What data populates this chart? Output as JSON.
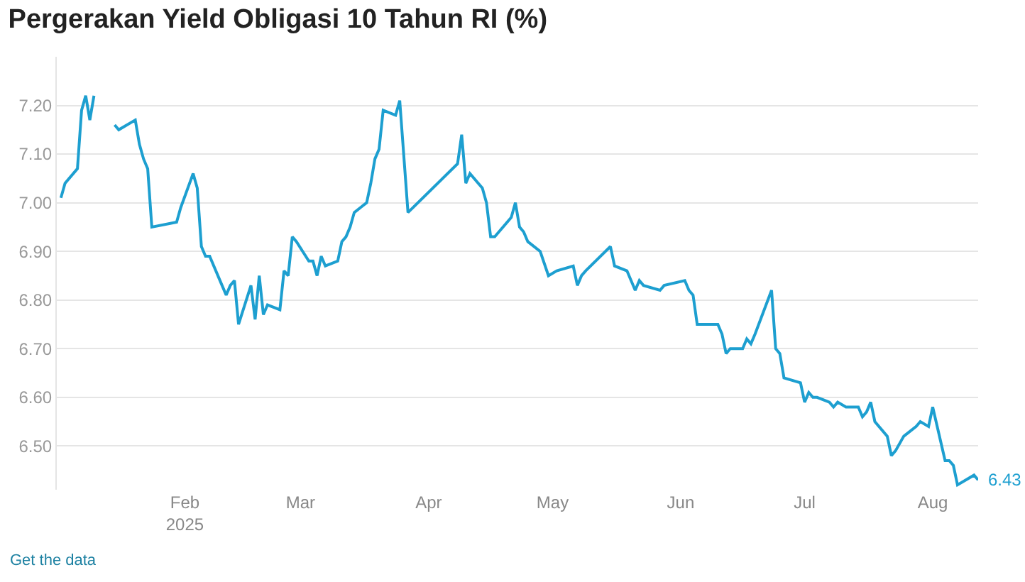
{
  "chart_data": {
    "type": "line",
    "title": "Pergerakan Yield Obligasi 10 Tahun RI (%)",
    "x": [
      "2025-01-02",
      "2025-01-03",
      "2025-01-06",
      "2025-01-07",
      "2025-01-08",
      "2025-01-09",
      "2025-01-10",
      "2025-01-13",
      "2025-01-14",
      "2025-01-15",
      "2025-01-16",
      "2025-01-20",
      "2025-01-21",
      "2025-01-22",
      "2025-01-23",
      "2025-01-24",
      "2025-01-30",
      "2025-01-31",
      "2025-02-03",
      "2025-02-04",
      "2025-02-05",
      "2025-02-06",
      "2025-02-07",
      "2025-02-10",
      "2025-02-11",
      "2025-02-12",
      "2025-02-13",
      "2025-02-14",
      "2025-02-17",
      "2025-02-18",
      "2025-02-19",
      "2025-02-20",
      "2025-02-21",
      "2025-02-24",
      "2025-02-25",
      "2025-02-26",
      "2025-02-27",
      "2025-02-28",
      "2025-03-03",
      "2025-03-04",
      "2025-03-05",
      "2025-03-06",
      "2025-03-07",
      "2025-03-10",
      "2025-03-11",
      "2025-03-12",
      "2025-03-13",
      "2025-03-14",
      "2025-03-17",
      "2025-03-18",
      "2025-03-19",
      "2025-03-20",
      "2025-03-21",
      "2025-03-24",
      "2025-03-25",
      "2025-03-27",
      "2025-04-08",
      "2025-04-09",
      "2025-04-10",
      "2025-04-11",
      "2025-04-14",
      "2025-04-15",
      "2025-04-16",
      "2025-04-17",
      "2025-04-21",
      "2025-04-22",
      "2025-04-23",
      "2025-04-24",
      "2025-04-25",
      "2025-04-28",
      "2025-04-30",
      "2025-05-02",
      "2025-05-06",
      "2025-05-07",
      "2025-05-08",
      "2025-05-09",
      "2025-05-15",
      "2025-05-16",
      "2025-05-19",
      "2025-05-20",
      "2025-05-21",
      "2025-05-22",
      "2025-05-23",
      "2025-05-27",
      "2025-05-28",
      "2025-06-02",
      "2025-06-03",
      "2025-06-04",
      "2025-06-05",
      "2025-06-10",
      "2025-06-11",
      "2025-06-12",
      "2025-06-13",
      "2025-06-16",
      "2025-06-17",
      "2025-06-18",
      "2025-06-19",
      "2025-06-23",
      "2025-06-24",
      "2025-06-25",
      "2025-06-26",
      "2025-06-30",
      "2025-07-01",
      "2025-07-02",
      "2025-07-03",
      "2025-07-04",
      "2025-07-07",
      "2025-07-08",
      "2025-07-09",
      "2025-07-11",
      "2025-07-14",
      "2025-07-15",
      "2025-07-16",
      "2025-07-17",
      "2025-07-18",
      "2025-07-21",
      "2025-07-22",
      "2025-07-23",
      "2025-07-25",
      "2025-07-28",
      "2025-07-29",
      "2025-07-31",
      "2025-08-01",
      "2025-08-04",
      "2025-08-05",
      "2025-08-06",
      "2025-08-07",
      "2025-08-11",
      "2025-08-12"
    ],
    "series": [
      {
        "color": "#1d9fd0",
        "values": [
          7.01,
          7.04,
          7.07,
          7.19,
          7.22,
          7.17,
          7.22,
          null,
          null,
          7.16,
          7.15,
          7.17,
          7.12,
          7.09,
          7.07,
          6.95,
          6.96,
          6.99,
          7.06,
          7.03,
          6.91,
          6.89,
          6.89,
          6.83,
          6.81,
          6.83,
          6.84,
          6.75,
          6.83,
          6.76,
          6.85,
          6.77,
          6.79,
          6.78,
          6.86,
          6.85,
          6.93,
          6.92,
          6.88,
          6.88,
          6.85,
          6.89,
          6.87,
          6.88,
          6.92,
          6.93,
          6.95,
          6.98,
          7.0,
          7.04,
          7.09,
          7.11,
          7.19,
          7.18,
          7.21,
          6.98,
          7.08,
          7.14,
          7.04,
          7.06,
          7.03,
          7.0,
          6.93,
          6.93,
          6.97,
          7.0,
          6.95,
          6.94,
          6.92,
          6.9,
          6.85,
          6.86,
          6.87,
          6.83,
          6.85,
          6.86,
          6.91,
          6.87,
          6.86,
          6.84,
          6.82,
          6.84,
          6.83,
          6.82,
          6.83,
          6.84,
          6.82,
          6.81,
          6.75,
          6.75,
          6.73,
          6.69,
          6.7,
          6.7,
          6.72,
          6.71,
          6.73,
          6.82,
          6.7,
          6.69,
          6.64,
          6.63,
          6.59,
          6.61,
          6.6,
          6.6,
          6.59,
          6.58,
          6.59,
          6.58,
          6.58,
          6.56,
          6.57,
          6.59,
          6.55,
          6.52,
          6.48,
          6.49,
          6.52,
          6.54,
          6.55,
          6.54,
          6.58,
          6.47,
          6.47,
          6.46,
          6.42,
          6.44,
          6.43
        ]
      }
    ],
    "xlim": [
      "2025-01-01",
      "2025-08-12"
    ],
    "xticks": [
      {
        "value": "2025-02-01",
        "label": "Feb\n2025"
      },
      {
        "value": "2025-03-01",
        "label": "Mar"
      },
      {
        "value": "2025-04-01",
        "label": "Apr"
      },
      {
        "value": "2025-05-01",
        "label": "May"
      },
      {
        "value": "2025-06-01",
        "label": "Jun"
      },
      {
        "value": "2025-07-01",
        "label": "Jul"
      },
      {
        "value": "2025-08-01",
        "label": "Aug"
      }
    ],
    "ylim": [
      6.41,
      7.3
    ],
    "yticks": [
      {
        "value": 6.5,
        "label": "6.50"
      },
      {
        "value": 6.6,
        "label": "6.60"
      },
      {
        "value": 6.7,
        "label": "6.70"
      },
      {
        "value": 6.8,
        "label": "6.80"
      },
      {
        "value": 6.9,
        "label": "6.90"
      },
      {
        "value": 7.0,
        "label": "7.00"
      },
      {
        "value": 7.1,
        "label": "7.10"
      },
      {
        "value": 7.2,
        "label": "7.20"
      }
    ],
    "grid": "y",
    "legend": false,
    "marker": "none",
    "line_style": "solid",
    "annotations": [
      {
        "text": "6.43",
        "x": "2025-08-12",
        "y": 6.43
      },
      "Get the data"
    ]
  }
}
